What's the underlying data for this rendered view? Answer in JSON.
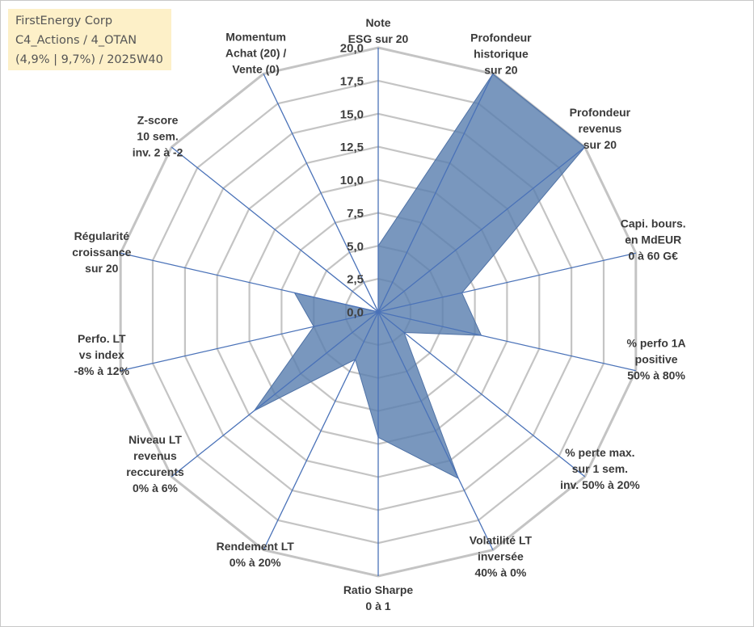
{
  "info_box": {
    "line1": "FirstEnergy Corp",
    "line2": "C4_Actions / 4_OTAN",
    "line3": "(4,9% | 9,7%) / 2025W40"
  },
  "chart_data": {
    "type": "radar",
    "rmin": 0,
    "rmax": 20,
    "tick_labels": [
      "0,0",
      "2,5",
      "5,0",
      "7,5",
      "10,0",
      "12,5",
      "15,0",
      "17,5",
      "20,0"
    ],
    "axes": [
      [
        "Note",
        "ESG sur 20"
      ],
      [
        "Profondeur",
        "historique",
        "sur 20"
      ],
      [
        "Profondeur",
        "revenus",
        "sur 20"
      ],
      [
        "Capi. bours.",
        "en MdEUR",
        "0 à 60 G€"
      ],
      [
        "% perfo 1A",
        "positive",
        "50% à 80%"
      ],
      [
        "% perte max.",
        "sur 1 sem.",
        "inv. 50% à 20%"
      ],
      [
        "Volatilité LT",
        "inversée",
        "40% à 0%"
      ],
      [
        "Ratio Sharpe",
        "0 à 1"
      ],
      [
        "Rendement LT",
        "0% à 20%"
      ],
      [
        "Niveau LT",
        "revenus",
        "reccurents",
        "0% à 6%"
      ],
      [
        "Perfo. LT",
        "vs index",
        "-8% à 12%"
      ],
      [
        "Régularité",
        "croissance",
        "sur 20"
      ],
      [
        "Z-score",
        "10 sem.",
        "inv. 2 à -2"
      ],
      [
        "Momentum",
        "Achat (20) /",
        "Vente (0)"
      ]
    ],
    "series": [
      {
        "values": [
          5.0,
          20.0,
          20.0,
          6.5,
          8.0,
          2.5,
          14.0,
          9.5,
          4.0,
          12.0,
          5.0,
          6.5,
          0.0,
          0.0
        ],
        "color": "#5b7fae"
      }
    ],
    "colors": {
      "grid": "#c4c4c4",
      "spoke": "#4a72b8",
      "fill": "#5b80b0",
      "info_bg": "#fdf0c8"
    },
    "grid": true
  }
}
